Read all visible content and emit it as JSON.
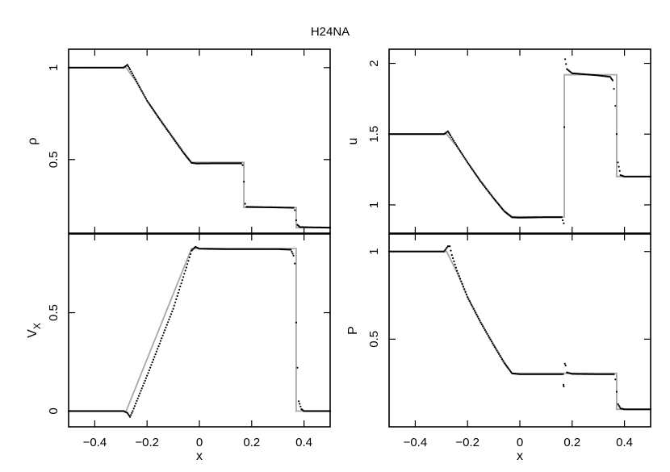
{
  "figure": {
    "title": "H24NA"
  },
  "chart_data": [
    {
      "type": "line",
      "panel": "top-left",
      "ylabel": "ρ",
      "xlabel": "",
      "xlim": [
        -0.5,
        0.5
      ],
      "ylim": [
        0.1,
        1.1
      ],
      "xticks": [
        -0.4,
        -0.2,
        0,
        0.2,
        0.4
      ],
      "yticks": [
        0.5,
        1
      ],
      "ytick_labels": [
        "0.5",
        "1"
      ],
      "xtick_labels_shown": false,
      "exact": [
        [
          -0.5,
          1.0
        ],
        [
          -0.28,
          1.0
        ],
        [
          -0.24,
          0.92
        ],
        [
          -0.2,
          0.82
        ],
        [
          -0.15,
          0.72
        ],
        [
          -0.1,
          0.62
        ],
        [
          -0.06,
          0.54
        ],
        [
          -0.03,
          0.485
        ],
        [
          0.17,
          0.485
        ],
        [
          0.17,
          0.24
        ],
        [
          0.37,
          0.24
        ],
        [
          0.37,
          0.13
        ],
        [
          0.5,
          0.13
        ]
      ],
      "numeric": [
        [
          -0.5,
          1.0
        ],
        [
          -0.29,
          1.0
        ],
        [
          -0.275,
          1.015
        ],
        [
          -0.265,
          0.99
        ],
        [
          -0.24,
          0.925
        ],
        [
          -0.2,
          0.82
        ],
        [
          -0.15,
          0.715
        ],
        [
          -0.1,
          0.615
        ],
        [
          -0.06,
          0.535
        ],
        [
          -0.03,
          0.482
        ],
        [
          -0.01,
          0.479
        ],
        [
          0.08,
          0.48
        ],
        [
          0.16,
          0.48
        ],
        [
          0.165,
          0.47
        ],
        [
          0.17,
          0.38
        ],
        [
          0.175,
          0.26
        ],
        [
          0.18,
          0.243
        ],
        [
          0.3,
          0.24
        ],
        [
          0.36,
          0.238
        ],
        [
          0.365,
          0.225
        ],
        [
          0.37,
          0.17
        ],
        [
          0.375,
          0.145
        ],
        [
          0.385,
          0.133
        ],
        [
          0.5,
          0.13
        ]
      ]
    },
    {
      "type": "line",
      "panel": "top-right",
      "ylabel": "u",
      "xlabel": "",
      "xlim": [
        -0.5,
        0.5
      ],
      "ylim": [
        0.8,
        2.1
      ],
      "xticks": [
        -0.4,
        -0.2,
        0,
        0.2,
        0.4
      ],
      "yticks": [
        1,
        1.5,
        2
      ],
      "ytick_labels": [
        "1",
        "1.5",
        "2"
      ],
      "xtick_labels_shown": false,
      "exact": [
        [
          -0.5,
          1.5
        ],
        [
          -0.28,
          1.5
        ],
        [
          -0.24,
          1.41
        ],
        [
          -0.2,
          1.3
        ],
        [
          -0.15,
          1.17
        ],
        [
          -0.1,
          1.05
        ],
        [
          -0.06,
          0.96
        ],
        [
          -0.03,
          0.915
        ],
        [
          0.17,
          0.915
        ],
        [
          0.17,
          1.92
        ],
        [
          0.37,
          1.92
        ],
        [
          0.37,
          1.2
        ],
        [
          0.5,
          1.2
        ]
      ],
      "numeric": [
        [
          -0.5,
          1.5
        ],
        [
          -0.29,
          1.5
        ],
        [
          -0.275,
          1.52
        ],
        [
          -0.265,
          1.49
        ],
        [
          -0.24,
          1.415
        ],
        [
          -0.2,
          1.3
        ],
        [
          -0.15,
          1.165
        ],
        [
          -0.1,
          1.045
        ],
        [
          -0.06,
          0.955
        ],
        [
          -0.03,
          0.912
        ],
        [
          0.0,
          0.91
        ],
        [
          0.1,
          0.913
        ],
        [
          0.16,
          0.913
        ],
        [
          0.168,
          0.87
        ],
        [
          0.17,
          1.55
        ],
        [
          0.173,
          2.03
        ],
        [
          0.18,
          1.96
        ],
        [
          0.2,
          1.93
        ],
        [
          0.3,
          1.915
        ],
        [
          0.345,
          1.905
        ],
        [
          0.355,
          1.88
        ],
        [
          0.36,
          1.82
        ],
        [
          0.365,
          1.7
        ],
        [
          0.37,
          1.5
        ],
        [
          0.375,
          1.3
        ],
        [
          0.385,
          1.21
        ],
        [
          0.4,
          1.2
        ],
        [
          0.5,
          1.2
        ]
      ]
    },
    {
      "type": "line",
      "panel": "bottom-left",
      "ylabel": "Vx",
      "ylabel_main": "V",
      "ylabel_sub": "X",
      "xlabel": "x",
      "xlim": [
        -0.5,
        0.5
      ],
      "ylim": [
        -0.08,
        0.9
      ],
      "xticks": [
        -0.4,
        -0.2,
        0,
        0.2,
        0.4
      ],
      "xtick_labels": [
        "−0.4",
        "−0.2",
        "0",
        "0.2",
        "0.4"
      ],
      "yticks": [
        0,
        0.5
      ],
      "ytick_labels": [
        "0",
        "0.5"
      ],
      "xtick_labels_shown": true,
      "exact": [
        [
          -0.5,
          0.0
        ],
        [
          -0.28,
          0.0
        ],
        [
          -0.03,
          0.826
        ],
        [
          0.37,
          0.826
        ],
        [
          0.37,
          0.0
        ],
        [
          0.5,
          0.0
        ]
      ],
      "numeric": [
        [
          -0.5,
          0.0
        ],
        [
          -0.29,
          0.0
        ],
        [
          -0.275,
          -0.01
        ],
        [
          -0.265,
          -0.03
        ],
        [
          -0.255,
          0.0
        ],
        [
          -0.2,
          0.18
        ],
        [
          -0.1,
          0.52
        ],
        [
          -0.05,
          0.73
        ],
        [
          -0.03,
          0.815
        ],
        [
          -0.015,
          0.835
        ],
        [
          0.0,
          0.825
        ],
        [
          0.1,
          0.823
        ],
        [
          0.3,
          0.823
        ],
        [
          0.35,
          0.82
        ],
        [
          0.36,
          0.79
        ],
        [
          0.365,
          0.75
        ],
        [
          0.37,
          0.45
        ],
        [
          0.375,
          0.22
        ],
        [
          0.38,
          0.05
        ],
        [
          0.39,
          0.01
        ],
        [
          0.4,
          0.0
        ],
        [
          0.5,
          0.0
        ]
      ]
    },
    {
      "type": "line",
      "panel": "bottom-right",
      "ylabel": "P",
      "xlabel": "x",
      "xlim": [
        -0.5,
        0.5
      ],
      "ylim": [
        0.0,
        1.1
      ],
      "xticks": [
        -0.4,
        -0.2,
        0,
        0.2,
        0.4
      ],
      "xtick_labels": [
        "−0.4",
        "−0.2",
        "0",
        "0.2",
        "0.4"
      ],
      "yticks": [
        0.5,
        1
      ],
      "ytick_labels": [
        "0.5",
        "1"
      ],
      "xtick_labels_shown": true,
      "exact": [
        [
          -0.5,
          1.0
        ],
        [
          -0.28,
          1.0
        ],
        [
          -0.24,
          0.88
        ],
        [
          -0.2,
          0.74
        ],
        [
          -0.15,
          0.6
        ],
        [
          -0.1,
          0.47
        ],
        [
          -0.06,
          0.37
        ],
        [
          -0.03,
          0.305
        ],
        [
          0.37,
          0.305
        ],
        [
          0.37,
          0.1
        ],
        [
          0.5,
          0.1
        ]
      ],
      "numeric": [
        [
          -0.5,
          1.0
        ],
        [
          -0.29,
          1.0
        ],
        [
          -0.275,
          1.03
        ],
        [
          -0.268,
          1.03
        ],
        [
          -0.26,
          0.98
        ],
        [
          -0.24,
          0.89
        ],
        [
          -0.2,
          0.74
        ],
        [
          -0.15,
          0.595
        ],
        [
          -0.1,
          0.465
        ],
        [
          -0.06,
          0.365
        ],
        [
          -0.03,
          0.305
        ],
        [
          0.0,
          0.3
        ],
        [
          0.16,
          0.3
        ],
        [
          0.165,
          0.3
        ],
        [
          0.167,
          0.24
        ],
        [
          0.168,
          0.23
        ],
        [
          0.172,
          0.36
        ],
        [
          0.175,
          0.35
        ],
        [
          0.18,
          0.31
        ],
        [
          0.2,
          0.302
        ],
        [
          0.3,
          0.3
        ],
        [
          0.36,
          0.3
        ],
        [
          0.365,
          0.27
        ],
        [
          0.37,
          0.2
        ],
        [
          0.375,
          0.13
        ],
        [
          0.385,
          0.105
        ],
        [
          0.4,
          0.1
        ],
        [
          0.5,
          0.1
        ]
      ]
    }
  ]
}
